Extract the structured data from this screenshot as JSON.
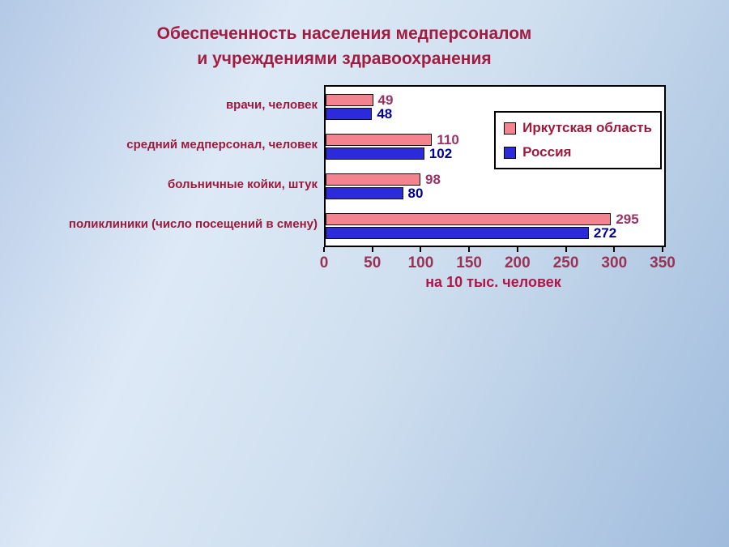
{
  "title": {
    "line1": "Обеспеченность населения медперсоналом",
    "line2": "и учреждениями здравоохранения"
  },
  "chart_data": {
    "type": "bar",
    "orientation": "horizontal",
    "title": "Обеспеченность населения медперсоналом и учреждениями здравоохранения",
    "categories": [
      "врачи, человек",
      "средний медперсонал, человек",
      "больничные койки, штук",
      "поликлиники (число посещений в смену)"
    ],
    "series": [
      {
        "name": "Иркутская область",
        "color": "#f2838f",
        "values": [
          49,
          110,
          98,
          295
        ]
      },
      {
        "name": "Россия",
        "color": "#2b2bdc",
        "values": [
          48,
          102,
          80,
          272
        ]
      }
    ],
    "xlabel": "на 10 тыс. человек",
    "xlim": [
      0,
      350
    ],
    "xticks": [
      0,
      50,
      100,
      150,
      200,
      250,
      300,
      350
    ],
    "grid": false,
    "legend_position": "inside-top-right"
  },
  "colors": {
    "title_color": "#a31c3f",
    "category_color": "#9c1a3c",
    "value_irkutsk": "#993366",
    "value_russia": "#000099",
    "tick_color": "#993355",
    "axis_label_color": "#b01648",
    "series_irkutsk": "#f2838f",
    "series_russia": "#2b2bdc"
  }
}
